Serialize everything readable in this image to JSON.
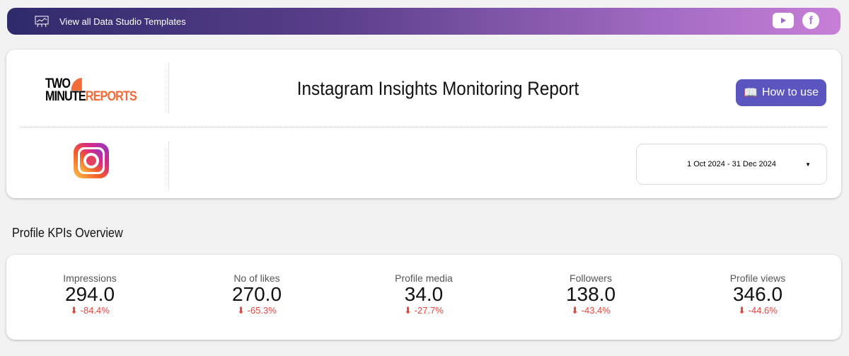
{
  "banner": {
    "label": "View all Data Studio Templates",
    "icons": [
      "presentation-chart-icon",
      "youtube-icon",
      "facebook-icon"
    ]
  },
  "header": {
    "logo_top": "TWO",
    "logo_bottom_left": "MINUTE",
    "logo_bottom_right": "REPORTS",
    "title": "Instagram Insights Monitoring Report",
    "how_to_use": "How to use",
    "date_range": "1 Oct 2024 - 31 Dec 2024",
    "fb": "f"
  },
  "section_title": "Profile KPIs Overview",
  "kpis": [
    {
      "label": "Impressions",
      "value": "294.0",
      "delta": "-84.4%"
    },
    {
      "label": "No of likes",
      "value": "270.0",
      "delta": "-65.3%"
    },
    {
      "label": "Profile media",
      "value": "34.0",
      "delta": "-27.7%"
    },
    {
      "label": "Followers",
      "value": "138.0",
      "delta": "-43.4%"
    },
    {
      "label": "Profile views",
      "value": "346.0",
      "delta": "-44.6%"
    }
  ],
  "colors": {
    "accent": "#5b55c0",
    "negative": "#e8453c",
    "brand_orange": "#f26b3a"
  }
}
